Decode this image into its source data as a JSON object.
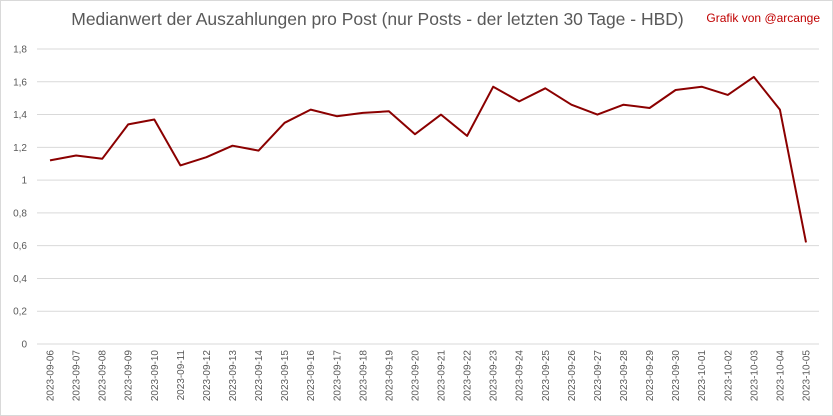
{
  "chart_data": {
    "type": "line",
    "title": "Medianwert der Auszahlungen pro Post (nur Posts - der letzten 30 Tage - HBD)",
    "credit": "Grafik von @arcange",
    "x": [
      "2023-09-06",
      "2023-09-07",
      "2023-09-08",
      "2023-09-09",
      "2023-09-10",
      "2023-09-11",
      "2023-09-12",
      "2023-09-13",
      "2023-09-14",
      "2023-09-15",
      "2023-09-16",
      "2023-09-17",
      "2023-09-18",
      "2023-09-19",
      "2023-09-20",
      "2023-09-21",
      "2023-09-22",
      "2023-09-23",
      "2023-09-24",
      "2023-09-25",
      "2023-09-26",
      "2023-09-27",
      "2023-09-28",
      "2023-09-29",
      "2023-09-30",
      "2023-10-01",
      "2023-10-02",
      "2023-10-03",
      "2023-10-04",
      "2023-10-05"
    ],
    "series": [
      {
        "values": [
          1.12,
          1.15,
          1.13,
          1.34,
          1.37,
          1.09,
          1.14,
          1.21,
          1.18,
          1.35,
          1.43,
          1.39,
          1.41,
          1.42,
          1.28,
          1.4,
          1.27,
          1.57,
          1.48,
          1.56,
          1.46,
          1.4,
          1.46,
          1.44,
          1.55,
          1.57,
          1.52,
          1.63,
          1.43,
          0.62
        ]
      }
    ],
    "yticks": [
      "0",
      "0,2",
      "0,4",
      "0,6",
      "0,8",
      "1",
      "1,2",
      "1,4",
      "1,6",
      "1,8"
    ],
    "ylim": [
      0,
      1.8
    ],
    "grid": true,
    "line_color": "#8b0000",
    "grid_color": "#d9d9d9"
  }
}
